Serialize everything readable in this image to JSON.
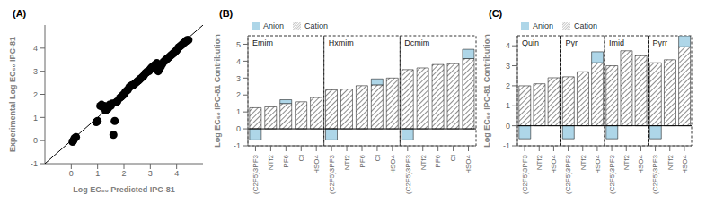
{
  "chart_data": [
    {
      "type": "scatter",
      "title": "(A)",
      "x_label": "Log EC₅₀ Predicted IPC-81",
      "y_label": "Experimental Log EC₅₀ IPC-81",
      "xlim": [
        -1.0,
        5.0
      ],
      "ylim": [
        -1.0,
        5.0
      ],
      "xticks": [
        0,
        1,
        2,
        3,
        4
      ],
      "yticks": [
        -1,
        0,
        1,
        2,
        3,
        4
      ],
      "grid": false,
      "series": [
        {
          "type": "scatter",
          "color": "#000000",
          "x": [
            0.05,
            0.08,
            0.12,
            0.18,
            0.95,
            1.0,
            1.1,
            1.15,
            1.2,
            1.25,
            1.3,
            1.35,
            1.4,
            1.45,
            1.5,
            1.55,
            1.6,
            1.65,
            1.7,
            1.75,
            1.85,
            1.9,
            1.95,
            2.0,
            2.05,
            2.1,
            2.15,
            2.2,
            2.25,
            2.3,
            2.35,
            2.4,
            2.45,
            2.5,
            2.55,
            2.6,
            2.65,
            2.7,
            2.75,
            2.8,
            2.85,
            2.9,
            2.95,
            3.0,
            3.05,
            3.1,
            3.15,
            3.2,
            3.25,
            3.3,
            3.35,
            3.4,
            3.45,
            3.5,
            3.55,
            3.6,
            3.65,
            3.7,
            3.75,
            3.8,
            3.85,
            3.9,
            3.95,
            4.0,
            4.05,
            4.1,
            4.15,
            4.2,
            4.25,
            4.3,
            4.35,
            4.4,
            4.45
          ],
          "y": [
            -0.05,
            0.0,
            0.1,
            0.15,
            0.8,
            0.85,
            1.5,
            1.55,
            1.45,
            1.5,
            1.3,
            1.35,
            1.4,
            1.55,
            1.5,
            1.6,
            0.25,
            0.85,
            1.65,
            1.7,
            1.85,
            1.9,
            1.95,
            2.0,
            2.1,
            2.15,
            2.2,
            2.3,
            2.35,
            2.4,
            2.4,
            2.45,
            2.5,
            2.55,
            2.6,
            2.65,
            2.7,
            2.75,
            2.8,
            2.9,
            2.95,
            3.0,
            3.0,
            3.1,
            3.15,
            3.2,
            3.25,
            3.3,
            3.35,
            3.0,
            3.1,
            3.2,
            3.3,
            3.4,
            3.45,
            3.5,
            3.55,
            3.6,
            3.65,
            3.7,
            3.75,
            3.8,
            3.85,
            3.9,
            4.0,
            4.05,
            4.1,
            4.15,
            4.2,
            4.25,
            4.3,
            4.35,
            4.35
          ]
        },
        {
          "type": "line",
          "color": "#000000",
          "line_style": "solid",
          "x": [
            -1.0,
            5.0
          ],
          "y": [
            -1.0,
            5.0
          ]
        }
      ]
    },
    {
      "type": "bar",
      "title": "(B)",
      "y_label": "Log EC₅₀ IPC-81 Contribution",
      "ylim": [
        -1.0,
        5.5
      ],
      "yticks": [
        -1,
        0,
        1,
        2,
        3,
        4,
        5
      ],
      "grid": false,
      "stacked": true,
      "legend": "top",
      "reference_line": 0,
      "groups": [
        "Emim",
        "Hxmim",
        "Dcmim"
      ],
      "categories": [
        "(C2F5)3PF3",
        "NTf2",
        "PF6",
        "Cl",
        "HSO4",
        "(C2F5)3PF3",
        "NTf2",
        "PF6",
        "Cl",
        "HSO4",
        "(C2F5)3PF3",
        "NTf2",
        "PF6",
        "Cl",
        "HSO4"
      ],
      "series": [
        {
          "name": "Cation",
          "color": "#ffffff",
          "values": [
            1.25,
            1.3,
            1.5,
            1.6,
            1.85,
            2.3,
            2.35,
            2.55,
            2.6,
            3.0,
            3.5,
            3.6,
            3.8,
            3.85,
            4.15
          ]
        },
        {
          "name": "Anion",
          "color": "#aed6e8",
          "values": [
            -0.65,
            0.0,
            0.22,
            0.0,
            0.0,
            -0.65,
            0.0,
            0.0,
            0.35,
            0.0,
            -0.65,
            0.0,
            0.0,
            0.0,
            0.55
          ]
        }
      ]
    },
    {
      "type": "bar",
      "title": "(C)",
      "y_label": "Log EC₅₀ IPC-81 Contribution",
      "ylim": [
        -1.0,
        4.5
      ],
      "yticks": [
        -1,
        0,
        1,
        2,
        3,
        4
      ],
      "grid": false,
      "stacked": true,
      "legend": "top",
      "reference_line": 0,
      "groups": [
        "Quin",
        "Pyr",
        "Imid",
        "Pyrr"
      ],
      "categories": [
        "(C2F5)3PF3",
        "NTf2",
        "HSO4",
        "(C2F5)3PF3",
        "NTf2",
        "HSO4",
        "(C2F5)3PF3",
        "NTf2",
        "HSO4",
        "(C2F5)3PF3",
        "NTf2",
        "HSO4"
      ],
      "series": [
        {
          "name": "Cation",
          "color": "#ffffff",
          "values": [
            2.0,
            2.1,
            2.4,
            2.45,
            2.7,
            3.15,
            3.0,
            3.75,
            3.5,
            3.15,
            3.3,
            3.95
          ]
        },
        {
          "name": "Anion",
          "color": "#aed6e8",
          "values": [
            -0.65,
            0.0,
            0.0,
            -0.65,
            0.0,
            0.55,
            -0.65,
            0.0,
            0.0,
            -0.65,
            0.0,
            0.55
          ]
        }
      ]
    }
  ]
}
